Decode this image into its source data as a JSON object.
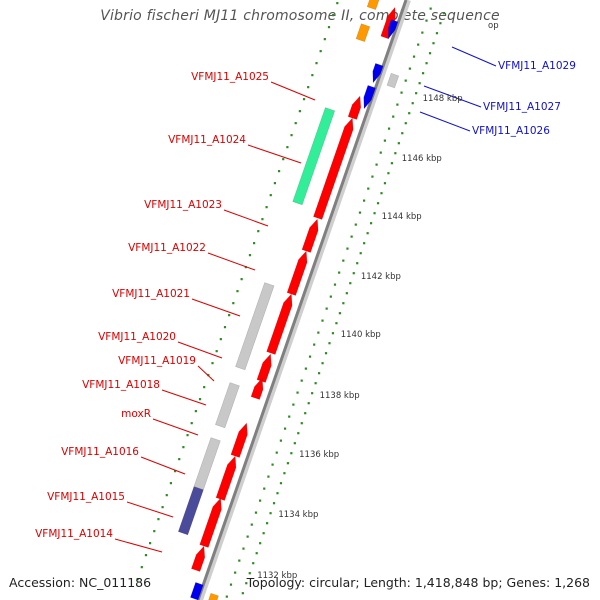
{
  "title": "Vibrio fischeri MJ11 chromosome II, complete sequence",
  "footer": {
    "accession": "Accession: NC_011186",
    "summary": "Topology: circular; Length: 1,418,848 bp; Genes: 1,268"
  },
  "colors": {
    "forward_gene": "#ff0000",
    "reverse_gene": "#0000ee",
    "orange_feature": "#ff9900",
    "green_feature": "#33ee99",
    "gray_feature": "#c8c8c8",
    "navy_feature": "#4b4b9b",
    "backbone": "#808080",
    "tick_dots": "#2e8b22",
    "label_forward": "#dd0000",
    "label_reverse": "#1111cc"
  },
  "tick_labels": [
    "1148 kbp",
    "1146 kbp",
    "1144 kbp",
    "1142 kbp",
    "1140 kbp",
    "1138 kbp",
    "1136 kbp",
    "1134 kbp",
    "1132 kbp"
  ],
  "clipped_tick_label": "op",
  "gene_labels_forward": [
    "VFMJ11_A1025",
    "VFMJ11_A1024",
    "VFMJ11_A1023",
    "VFMJ11_A1022",
    "VFMJ11_A1021",
    "VFMJ11_A1020",
    "VFMJ11_A1019",
    "VFMJ11_A1018",
    "moxR",
    "VFMJ11_A1016",
    "VFMJ11_A1015",
    "VFMJ11_A1014"
  ],
  "gene_labels_reverse": [
    "VFMJ11_A1029",
    "VFMJ11_A1027",
    "VFMJ11_A1026"
  ]
}
